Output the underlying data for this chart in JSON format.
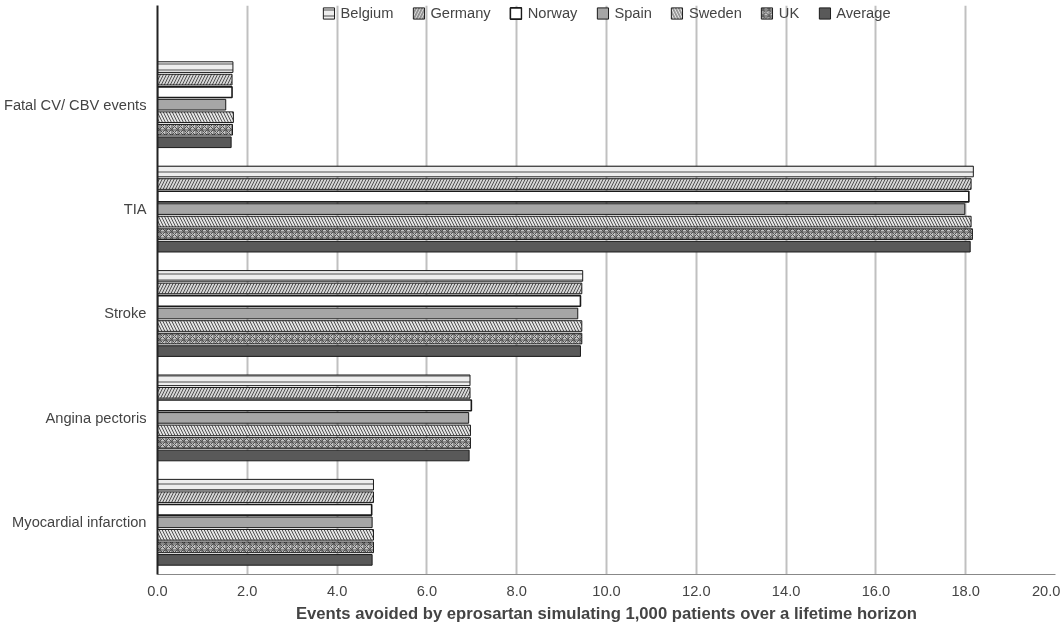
{
  "chart_data": {
    "type": "bar",
    "orientation": "horizontal",
    "xlabel": "Events avoided by eprosartan simulating 1,000 patients over a lifetime horizon",
    "categories": [
      "Fatal CV/ CBV events",
      "TIA",
      "Stroke",
      "Angina pectoris",
      "Myocardial infarction"
    ],
    "series": [
      {
        "name": "Belgium",
        "color": "#eeeeee",
        "values": [
          1.68,
          18.17,
          9.47,
          6.96,
          4.81
        ]
      },
      {
        "name": "Germany",
        "color": "#d6d6d6",
        "values": [
          1.66,
          18.12,
          9.45,
          6.96,
          4.81
        ]
      },
      {
        "name": "Norway",
        "color": "#ffffff",
        "values": [
          1.66,
          18.07,
          9.42,
          6.99,
          4.77
        ]
      },
      {
        "name": "Spain",
        "color": "#a6a6a6",
        "values": [
          1.52,
          17.98,
          9.36,
          6.93,
          4.78
        ]
      },
      {
        "name": "Sweden",
        "color": "#e4e4e4",
        "values": [
          1.69,
          18.12,
          9.45,
          6.97,
          4.81
        ]
      },
      {
        "name": "UK",
        "color": "#c4c4c4",
        "values": [
          1.67,
          18.15,
          9.45,
          6.97,
          4.81
        ]
      },
      {
        "name": "Average",
        "color": "#595959",
        "values": [
          1.64,
          18.1,
          9.42,
          6.94,
          4.78
        ]
      }
    ],
    "xlim": [
      0,
      20
    ],
    "xticks": [
      {
        "value": 0,
        "label": "0.0"
      },
      {
        "value": 2,
        "label": "2.0"
      },
      {
        "value": 4,
        "label": "4.0"
      },
      {
        "value": 6,
        "label": "6.0"
      },
      {
        "value": 8,
        "label": "8.0"
      },
      {
        "value": 10,
        "label": "10.0"
      },
      {
        "value": 12,
        "label": "12.0"
      },
      {
        "value": 14,
        "label": "14.0"
      },
      {
        "value": 16,
        "label": "16.0"
      },
      {
        "value": 18,
        "label": "18.0"
      },
      {
        "value": 20,
        "label": "20.0"
      }
    ],
    "grid": "x",
    "legend": "top"
  }
}
